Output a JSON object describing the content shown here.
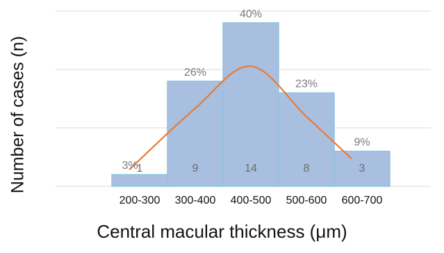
{
  "chart_data": {
    "type": "bar",
    "title": "",
    "xlabel": "Central macular thickness (μm)",
    "ylabel": "Number of cases (n)",
    "categories": [
      "200-300",
      "300-400",
      "400-500",
      "500-600",
      "600-700"
    ],
    "values": [
      1,
      9,
      14,
      8,
      3
    ],
    "percent_labels": [
      "3%",
      "26%",
      "40%",
      "23%",
      "9%"
    ],
    "ylim": [
      0,
      15
    ],
    "grid": true,
    "trend_line": true,
    "colors": {
      "bar_fill": "#a9bfe0",
      "bar_stroke": "#8fc3e0",
      "trend_line": "#e87a33",
      "grid": "#d9d9d9"
    }
  }
}
